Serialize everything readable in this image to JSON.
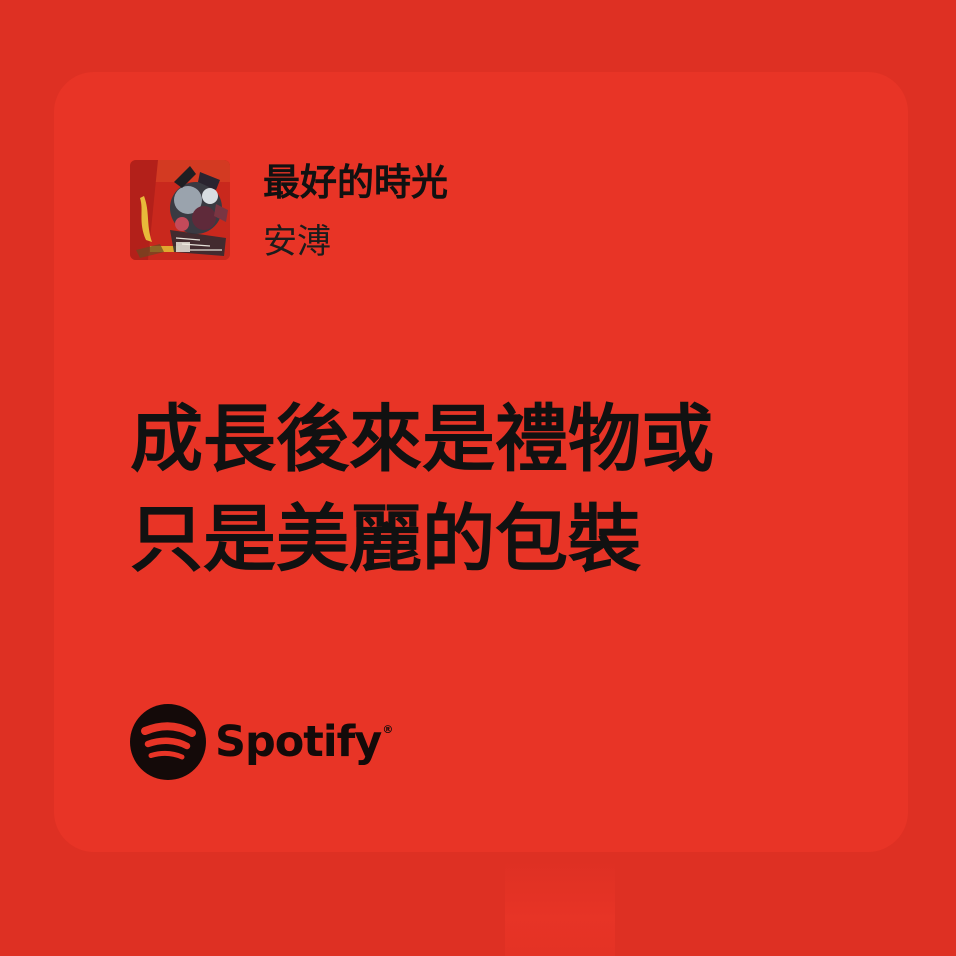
{
  "card": {
    "background_color": "#e83426",
    "page_background_color": "#de3023"
  },
  "track": {
    "title": "最好的時光",
    "artist": "安溥",
    "cover_icon": "album-cover-art"
  },
  "lyrics": {
    "lines": [
      "成長後來是禮物或",
      "只是美麗的包裝"
    ]
  },
  "branding": {
    "name": "Spotify",
    "registered_mark": "®",
    "icon": "spotify-logo-icon",
    "color": "#140a09"
  }
}
